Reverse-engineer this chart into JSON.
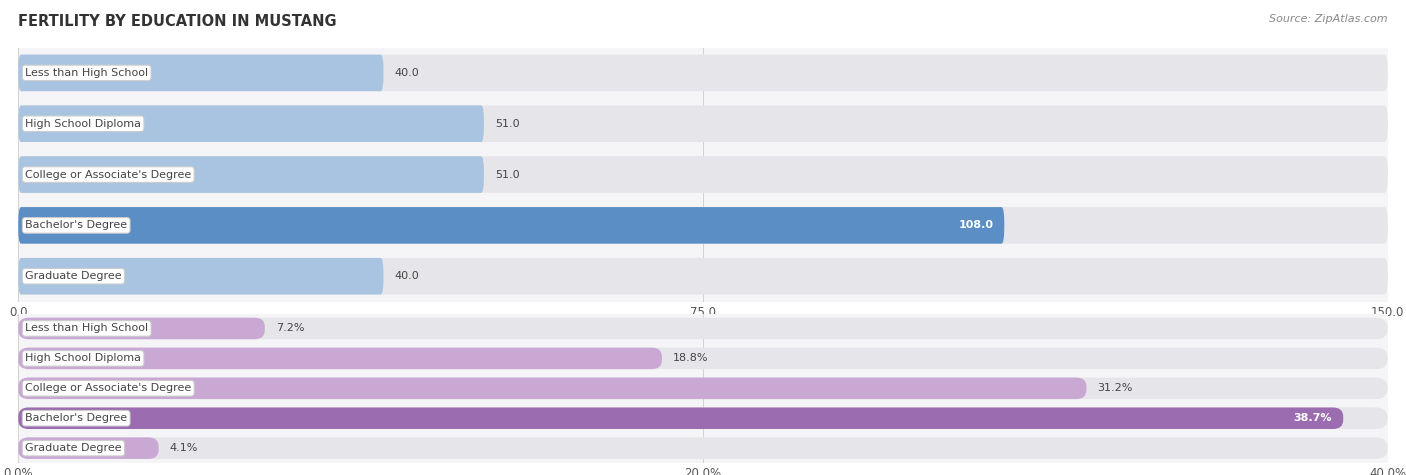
{
  "title": "FERTILITY BY EDUCATION IN MUSTANG",
  "source": "Source: ZipAtlas.com",
  "top_chart": {
    "categories": [
      "Less than High School",
      "High School Diploma",
      "College or Associate's Degree",
      "Bachelor's Degree",
      "Graduate Degree"
    ],
    "values": [
      40.0,
      51.0,
      51.0,
      108.0,
      40.0
    ],
    "xlim": [
      0,
      150
    ],
    "xticks": [
      0.0,
      75.0,
      150.0
    ],
    "bar_color_normal": "#a8c4e0",
    "bar_color_highlight": "#5b8ec4",
    "highlight_index": 3,
    "label_color_normal": "#444444",
    "label_color_highlight": "#ffffff",
    "value_label_normal_color": "#444444",
    "value_label_highlight_color": "#ffffff"
  },
  "bottom_chart": {
    "categories": [
      "Less than High School",
      "High School Diploma",
      "College or Associate's Degree",
      "Bachelor's Degree",
      "Graduate Degree"
    ],
    "values": [
      7.2,
      18.8,
      31.2,
      38.7,
      4.1
    ],
    "value_labels": [
      "7.2%",
      "18.8%",
      "31.2%",
      "38.7%",
      "4.1%"
    ],
    "xlim": [
      0,
      40
    ],
    "xticks": [
      0.0,
      20.0,
      40.0
    ],
    "xticklabels": [
      "0.0%",
      "20.0%",
      "40.0%"
    ],
    "bar_color_normal": "#c9a8d4",
    "bar_color_highlight": "#9b6caf",
    "highlight_index": 3,
    "label_color_normal": "#444444",
    "label_color_highlight": "#ffffff",
    "value_label_normal_color": "#444444",
    "value_label_highlight_color": "#ffffff"
  },
  "background_color": "#f0f0f0",
  "bar_bg_color": "#e8e8ec",
  "bar_height": 0.72,
  "label_fontsize": 8.0,
  "value_fontsize": 8.0,
  "tick_fontsize": 8.5,
  "title_fontsize": 10.5,
  "source_fontsize": 8
}
